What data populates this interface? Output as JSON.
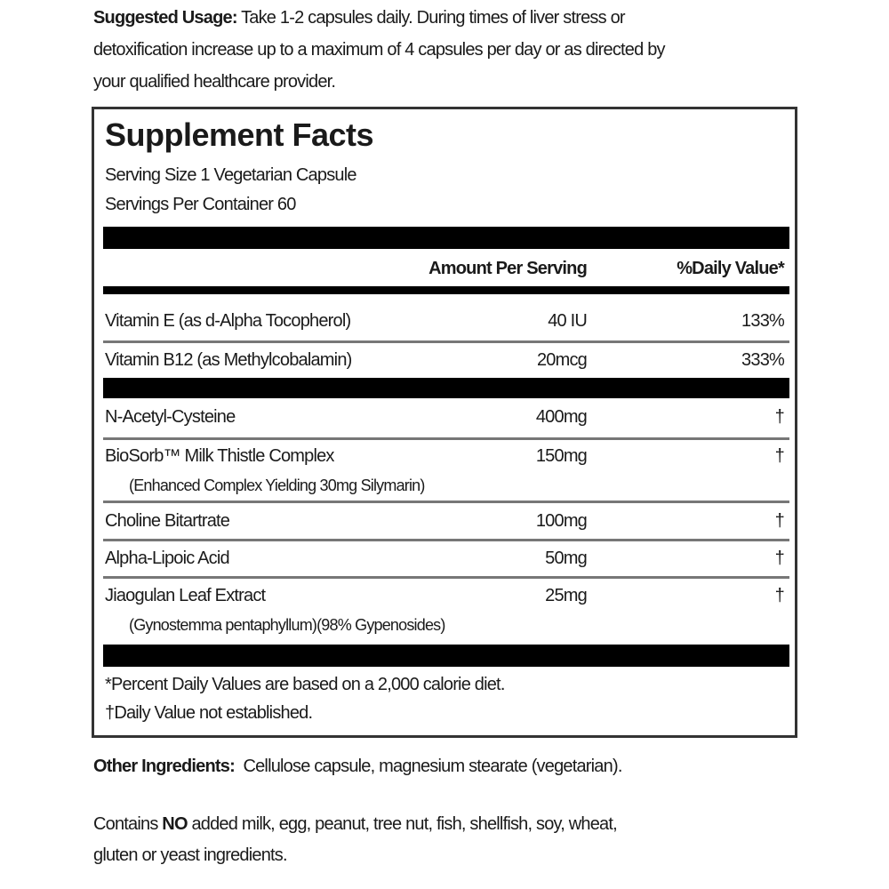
{
  "usage": {
    "label": "Suggested Usage:",
    "line1": " Take 1-2 capsules daily. During times of liver stress or",
    "line2": "detoxification increase up to a maximum of 4 capsules per day or as directed by",
    "line3": "your qualified healthcare provider."
  },
  "facts": {
    "title": "Supplement Facts",
    "serving_size": "Serving Size 1 Vegetarian Capsule",
    "servings_per_container": "Servings Per Container 60",
    "header_amount": "Amount Per Serving",
    "header_dv": "%Daily Value*",
    "vitamins": [
      {
        "name": "Vitamin E (as d-Alpha Tocopherol)",
        "amount": "40 IU",
        "dv": "133%"
      },
      {
        "name": "Vitamin B12 (as Methylcobalamin)",
        "amount": "20mcg",
        "dv": "333%"
      }
    ],
    "ingredients": [
      {
        "name": "N-Acetyl-Cysteine",
        "amount": "400mg",
        "dv": "†"
      },
      {
        "name": "BioSorb™ Milk Thistle Complex",
        "sub": "(Enhanced Complex Yielding 30mg Silymarin)",
        "amount": "150mg",
        "dv": "†"
      },
      {
        "name": "Choline Bitartrate",
        "amount": "100mg",
        "dv": "†"
      },
      {
        "name": "Alpha-Lipoic Acid",
        "amount": "50mg",
        "dv": "†"
      },
      {
        "name": "Jiaogulan Leaf Extract",
        "sub": "(Gynostemma pentaphyllum)(98% Gypenosides)",
        "amount": "25mg",
        "dv": "†"
      }
    ],
    "footnote1": "*Percent Daily Values are based on a 2,000 calorie diet.",
    "footnote2": "†Daily Value not established."
  },
  "other": {
    "label": "Other Ingredients:",
    "text": "  Cellulose capsule, magnesium stearate (vegetarian)."
  },
  "contains": {
    "pre": "Contains ",
    "no": "NO",
    "post": " added milk, egg, peanut, tree nut, fish, shellfish, soy, wheat,",
    "line2": "gluten or yeast ingredients."
  }
}
